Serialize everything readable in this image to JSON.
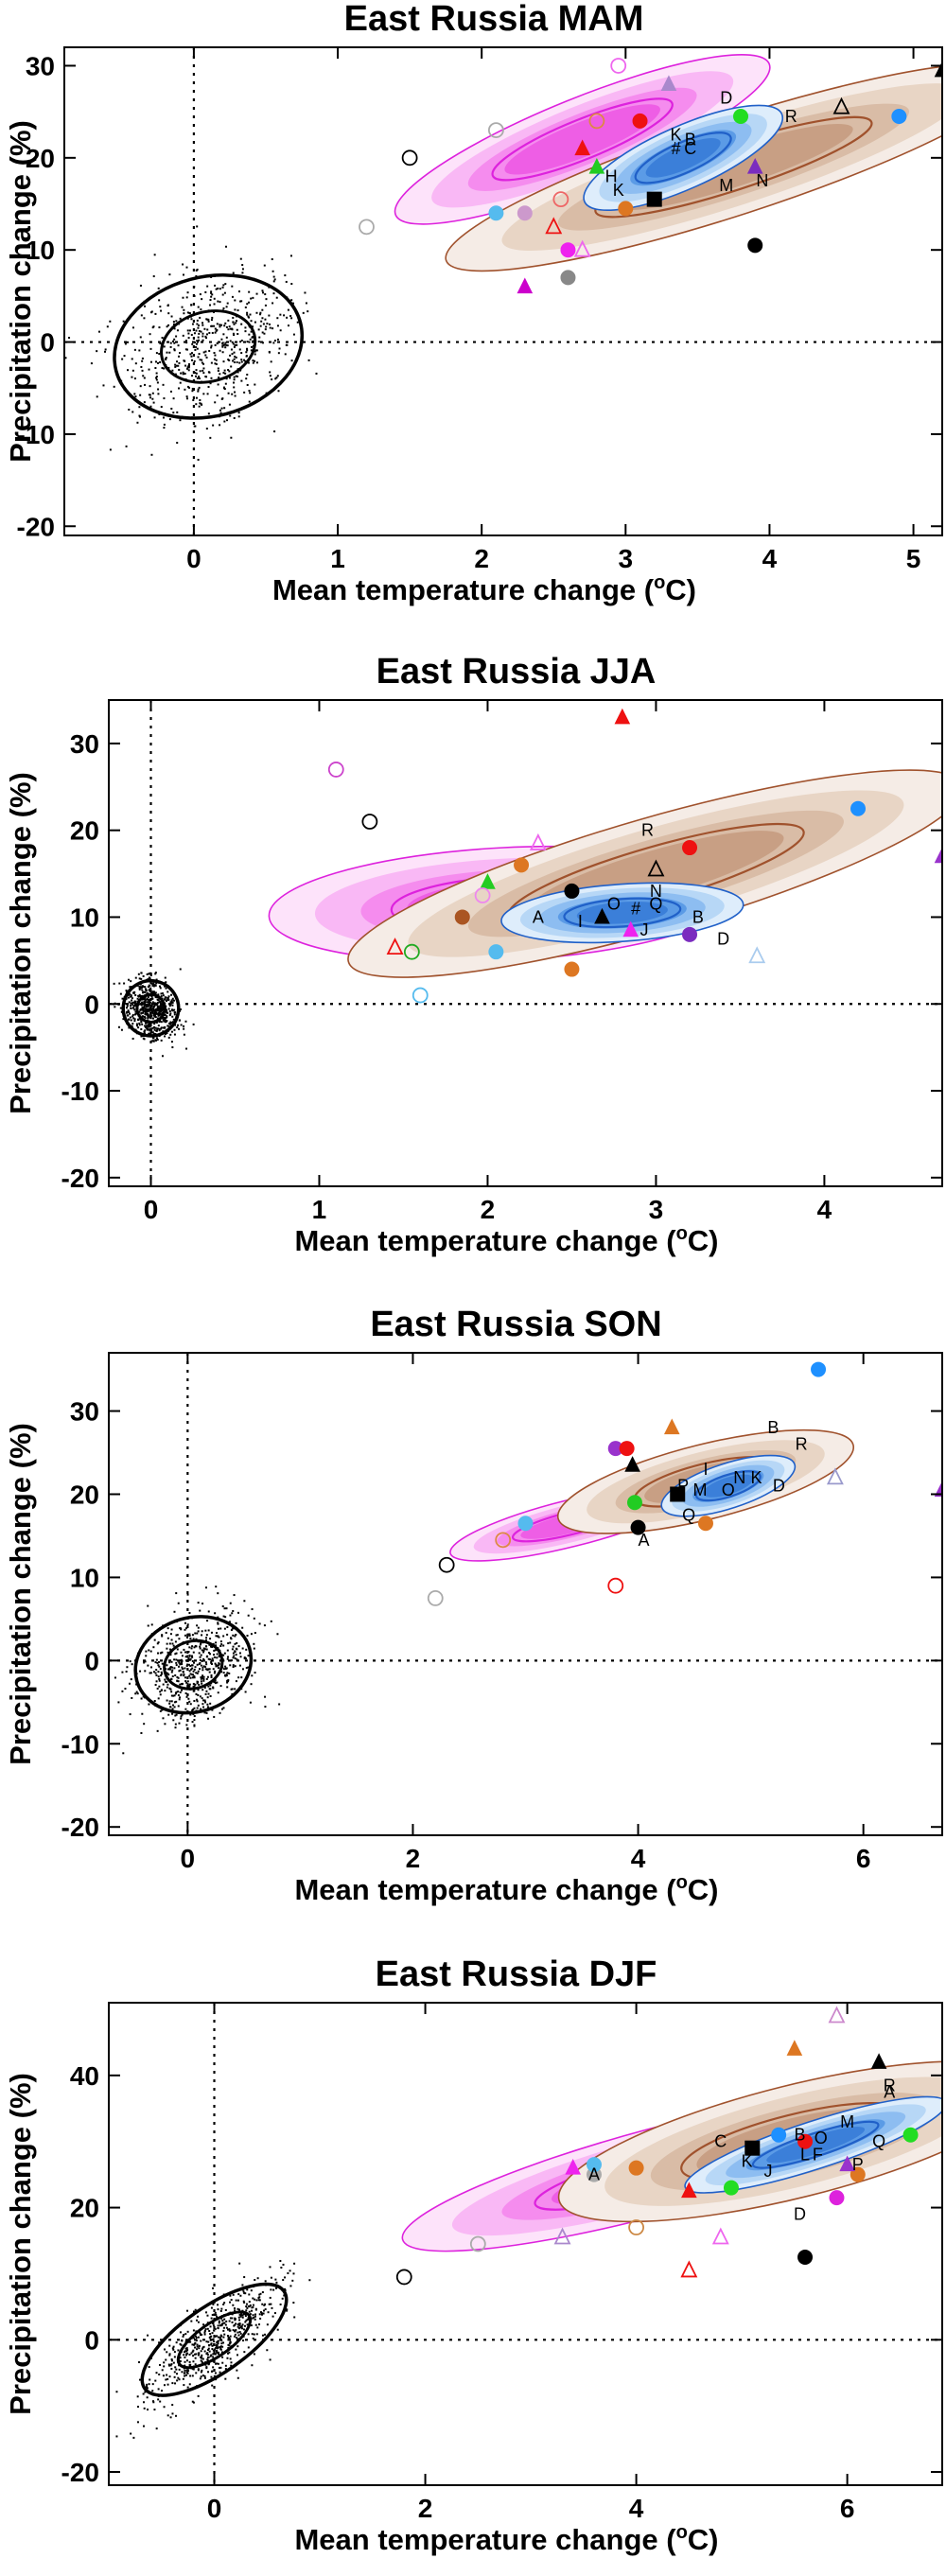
{
  "chart_data": [
    {
      "type": "scatter",
      "title": "East Russia MAM",
      "xlabel": "Mean temperature change (",
      "xlabel_sup": "o",
      "xlabel_unit": "C)",
      "ylabel": "Precipitation change (%)",
      "xlim": [
        -0.9,
        5.2
      ],
      "ylim": [
        -21,
        32
      ],
      "xticks": [
        0,
        1,
        2,
        3,
        4,
        5
      ],
      "yticks": [
        -20,
        -10,
        0,
        10,
        20,
        30
      ],
      "control": {
        "cx": 0.1,
        "cy": -0.5,
        "sx": 0.32,
        "sy": 4.4,
        "corr": 0.3
      },
      "magenta": {
        "cx": 2.7,
        "cy": 22,
        "rx": 1.4,
        "ry": 4.5,
        "angle": 22
      },
      "brown": {
        "cx": 3.75,
        "cy": 19,
        "rx": 2.1,
        "ry": 5.2,
        "angle": 18
      },
      "blue": {
        "cx": 3.4,
        "cy": 20,
        "rx": 0.75,
        "ry": 3.4,
        "angle": 24
      },
      "letters": [
        {
          "t": "D",
          "x": 3.7,
          "y": 26.5
        },
        {
          "t": "K",
          "x": 3.35,
          "y": 22.5
        },
        {
          "t": "B",
          "x": 3.45,
          "y": 22
        },
        {
          "t": "R",
          "x": 4.15,
          "y": 24.5
        },
        {
          "t": "#",
          "x": 3.35,
          "y": 21
        },
        {
          "t": "C",
          "x": 3.45,
          "y": 21
        },
        {
          "t": "H",
          "x": 2.9,
          "y": 18
        },
        {
          "t": "K",
          "x": 2.95,
          "y": 16.5
        },
        {
          "t": "M",
          "x": 3.7,
          "y": 17
        },
        {
          "t": "N",
          "x": 3.95,
          "y": 17.5
        },
        {
          "t": "O",
          "x": 3.2,
          "y": 15.5
        }
      ],
      "markers": [
        {
          "s": "open-circle",
          "c": "#000000",
          "x": 1.5,
          "y": 20
        },
        {
          "s": "open-circle",
          "c": "#aaaaaa",
          "x": 1.2,
          "y": 12.5
        },
        {
          "s": "open-circle",
          "c": "#ee66ee",
          "x": 2.95,
          "y": 30
        },
        {
          "s": "fill-triangle",
          "c": "#cc00cc",
          "x": 2.3,
          "y": 6
        },
        {
          "s": "fill-circle",
          "c": "#888888",
          "x": 2.6,
          "y": 7
        },
        {
          "s": "fill-circle",
          "c": "#000000",
          "x": 3.9,
          "y": 10.5
        },
        {
          "s": "fill-triangle",
          "c": "#000000",
          "x": 5.2,
          "y": 29.5
        },
        {
          "s": "fill-circle",
          "c": "#1e90ff",
          "x": 4.9,
          "y": 24.5
        },
        {
          "s": "open-triangle",
          "c": "#000000",
          "x": 4.5,
          "y": 25.5
        },
        {
          "s": "fill-triangle",
          "c": "#7b2cbf",
          "x": 3.9,
          "y": 19
        },
        {
          "s": "fill-circle",
          "c": "#ee1111",
          "x": 3.1,
          "y": 24
        },
        {
          "s": "fill-circle",
          "c": "#22dd22",
          "x": 3.8,
          "y": 24.5
        },
        {
          "s": "fill-triangle",
          "c": "#ee1111",
          "x": 2.7,
          "y": 21
        },
        {
          "s": "fill-triangle",
          "c": "#22cc22",
          "x": 2.8,
          "y": 19
        },
        {
          "s": "fill-circle",
          "c": "#dd7722",
          "x": 3.0,
          "y": 14.5
        },
        {
          "s": "fill-square",
          "c": "#000000",
          "x": 3.2,
          "y": 15.5
        },
        {
          "s": "fill-circle",
          "c": "#ee22ee",
          "x": 2.6,
          "y": 10
        },
        {
          "s": "open-triangle",
          "c": "#ee1111",
          "x": 2.5,
          "y": 12.5
        },
        {
          "s": "fill-circle",
          "c": "#55bbee",
          "x": 2.1,
          "y": 14
        },
        {
          "s": "open-circle",
          "c": "#aaaaaa",
          "x": 2.1,
          "y": 23
        },
        {
          "s": "fill-circle",
          "c": "#cc99cc",
          "x": 2.3,
          "y": 14
        },
        {
          "s": "open-triangle",
          "c": "#ee66ee",
          "x": 2.7,
          "y": 10
        },
        {
          "s": "open-circle",
          "c": "#ee6666",
          "x": 2.55,
          "y": 15.5
        },
        {
          "s": "fill-triangle",
          "c": "#aa88cc",
          "x": 3.3,
          "y": 28
        },
        {
          "s": "open-circle",
          "c": "#dd8844",
          "x": 2.8,
          "y": 24
        }
      ]
    },
    {
      "type": "scatter",
      "title": "East Russia JJA",
      "xlabel": "Mean temperature change (",
      "xlabel_sup": "o",
      "xlabel_unit": "C)",
      "ylabel": "Precipitation change (%)",
      "xlim": [
        -0.25,
        4.7
      ],
      "ylim": [
        -21,
        35
      ],
      "xticks": [
        0,
        1,
        2,
        3,
        4
      ],
      "yticks": [
        -20,
        -10,
        0,
        10,
        20,
        30
      ],
      "control": {
        "cx": 0.0,
        "cy": -0.5,
        "sx": 0.08,
        "sy": 1.8,
        "corr": -0.2
      },
      "magenta": {
        "cx": 2.1,
        "cy": 11.5,
        "rx": 1.4,
        "ry": 6.5,
        "angle": 3
      },
      "brown": {
        "cx": 3.0,
        "cy": 15,
        "rx": 1.9,
        "ry": 6.5,
        "angle": 16
      },
      "blue": {
        "cx": 2.8,
        "cy": 10.5,
        "rx": 0.72,
        "ry": 3.3,
        "angle": 4
      },
      "letters": [
        {
          "t": "R",
          "x": 2.95,
          "y": 20
        },
        {
          "t": "A",
          "x": 2.3,
          "y": 10
        },
        {
          "t": "I",
          "x": 2.55,
          "y": 9.5
        },
        {
          "t": "O",
          "x": 2.75,
          "y": 11.5
        },
        {
          "t": "#",
          "x": 2.88,
          "y": 11
        },
        {
          "t": "Q",
          "x": 3.0,
          "y": 11.5
        },
        {
          "t": "N",
          "x": 3.0,
          "y": 13
        },
        {
          "t": "J",
          "x": 2.93,
          "y": 8.5
        },
        {
          "t": "D",
          "x": 3.4,
          "y": 7.5
        },
        {
          "t": "B",
          "x": 3.25,
          "y": 10
        }
      ],
      "markers": [
        {
          "s": "fill-triangle",
          "c": "#ee1111",
          "x": 2.8,
          "y": 33
        },
        {
          "s": "open-circle",
          "c": "#cc44cc",
          "x": 1.1,
          "y": 27
        },
        {
          "s": "open-circle",
          "c": "#000000",
          "x": 1.3,
          "y": 21
        },
        {
          "s": "fill-circle",
          "c": "#1e90ff",
          "x": 4.2,
          "y": 22.5
        },
        {
          "s": "fill-triangle",
          "c": "#9933cc",
          "x": 4.7,
          "y": 17
        },
        {
          "s": "fill-circle",
          "c": "#ee1111",
          "x": 3.2,
          "y": 18
        },
        {
          "s": "fill-circle",
          "c": "#000000",
          "x": 2.5,
          "y": 13
        },
        {
          "s": "fill-triangle",
          "c": "#000000",
          "x": 2.68,
          "y": 10
        },
        {
          "s": "fill-circle",
          "c": "#7b2cbf",
          "x": 3.2,
          "y": 8
        },
        {
          "s": "fill-triangle",
          "c": "#22cc22",
          "x": 2.0,
          "y": 14
        },
        {
          "s": "fill-circle",
          "c": "#dd7722",
          "x": 2.2,
          "y": 16
        },
        {
          "s": "fill-circle",
          "c": "#aa5522",
          "x": 1.85,
          "y": 10
        },
        {
          "s": "open-triangle",
          "c": "#ee1111",
          "x": 1.45,
          "y": 6.5
        },
        {
          "s": "open-circle",
          "c": "#22aa22",
          "x": 1.55,
          "y": 6
        },
        {
          "s": "fill-circle",
          "c": "#55bbee",
          "x": 2.05,
          "y": 6
        },
        {
          "s": "open-circle",
          "c": "#55bbee",
          "x": 1.6,
          "y": 1
        },
        {
          "s": "fill-circle",
          "c": "#dd7722",
          "x": 2.5,
          "y": 4
        },
        {
          "s": "open-triangle",
          "c": "#aaccee",
          "x": 3.6,
          "y": 5.5
        },
        {
          "s": "open-triangle",
          "c": "#ee66ee",
          "x": 2.3,
          "y": 18.5
        },
        {
          "s": "fill-triangle",
          "c": "#ee22ee",
          "x": 2.85,
          "y": 8.5
        },
        {
          "s": "open-circle",
          "c": "#ee88ee",
          "x": 1.97,
          "y": 12.5
        },
        {
          "s": "open-triangle",
          "c": "#000000",
          "x": 3.0,
          "y": 15.5
        }
      ]
    },
    {
      "type": "scatter",
      "title": "East Russia SON",
      "xlabel": "Mean temperature change (",
      "xlabel_sup": "o",
      "xlabel_unit": "C)",
      "ylabel": "Precipitation change (%)",
      "xlim": [
        -0.7,
        6.7
      ],
      "ylim": [
        -21,
        37
      ],
      "xticks": [
        0,
        2,
        4,
        6
      ],
      "yticks": [
        -20,
        -10,
        0,
        10,
        20,
        30
      ],
      "control": {
        "cx": 0.05,
        "cy": -0.5,
        "sx": 0.25,
        "sy": 3.3,
        "corr": 0.3
      },
      "magenta": {
        "cx": 3.4,
        "cy": 16.5,
        "rx": 1.1,
        "ry": 2.8,
        "angle": 14
      },
      "brown": {
        "cx": 4.6,
        "cy": 21.5,
        "rx": 1.35,
        "ry": 4.5,
        "angle": 14
      },
      "blue": {
        "cx": 4.8,
        "cy": 21,
        "rx": 0.62,
        "ry": 2.7,
        "angle": 18
      },
      "letters": [
        {
          "t": "B",
          "x": 5.2,
          "y": 28
        },
        {
          "t": "R",
          "x": 5.45,
          "y": 26
        },
        {
          "t": "I",
          "x": 4.6,
          "y": 23
        },
        {
          "t": "P",
          "x": 4.4,
          "y": 21
        },
        {
          "t": "M",
          "x": 4.55,
          "y": 20.5
        },
        {
          "t": "N",
          "x": 4.9,
          "y": 22
        },
        {
          "t": "K",
          "x": 5.05,
          "y": 22
        },
        {
          "t": "D",
          "x": 5.25,
          "y": 21
        },
        {
          "t": "O",
          "x": 4.8,
          "y": 20.5
        },
        {
          "t": "Q",
          "x": 4.45,
          "y": 17.5
        },
        {
          "t": "A",
          "x": 4.05,
          "y": 14.5
        }
      ],
      "markers": [
        {
          "s": "fill-circle",
          "c": "#1e90ff",
          "x": 5.6,
          "y": 35
        },
        {
          "s": "fill-triangle",
          "c": "#9933cc",
          "x": 6.7,
          "y": 20.5
        },
        {
          "s": "fill-triangle",
          "c": "#dd7722",
          "x": 4.3,
          "y": 28
        },
        {
          "s": "fill-circle",
          "c": "#9933cc",
          "x": 3.8,
          "y": 25.5
        },
        {
          "s": "fill-circle",
          "c": "#ee1111",
          "x": 3.9,
          "y": 25.5
        },
        {
          "s": "fill-triangle",
          "c": "#000000",
          "x": 3.95,
          "y": 23.5
        },
        {
          "s": "fill-square",
          "c": "#000000",
          "x": 4.35,
          "y": 20
        },
        {
          "s": "fill-circle",
          "c": "#000000",
          "x": 4.0,
          "y": 16
        },
        {
          "s": "fill-circle",
          "c": "#22cc22",
          "x": 3.97,
          "y": 19
        },
        {
          "s": "fill-circle",
          "c": "#dd7722",
          "x": 4.6,
          "y": 16.5
        },
        {
          "s": "open-circle",
          "c": "#000000",
          "x": 2.3,
          "y": 11.5
        },
        {
          "s": "open-circle",
          "c": "#aaaaaa",
          "x": 2.2,
          "y": 7.5
        },
        {
          "s": "open-circle",
          "c": "#ee1111",
          "x": 3.8,
          "y": 9
        },
        {
          "s": "fill-circle",
          "c": "#55bbee",
          "x": 3.0,
          "y": 16.5
        },
        {
          "s": "open-circle",
          "c": "#dd8844",
          "x": 2.8,
          "y": 14.5
        },
        {
          "s": "open-triangle",
          "c": "#9999cc",
          "x": 5.75,
          "y": 22
        }
      ]
    },
    {
      "type": "scatter",
      "title": "East Russia DJF",
      "xlabel": "Mean temperature change (",
      "xlabel_sup": "o",
      "xlabel_unit": "C)",
      "ylabel": "Precipitation change (%)",
      "xlim": [
        -1.0,
        6.9
      ],
      "ylim": [
        -22,
        51
      ],
      "xticks": [
        0,
        2,
        4,
        6
      ],
      "yticks": [
        -20,
        0,
        20,
        40
      ],
      "control": {
        "cx": 0.0,
        "cy": 0.0,
        "sx": 0.33,
        "sy": 4.6,
        "corr": 0.8
      },
      "magenta": {
        "cx": 4.2,
        "cy": 25.5,
        "rx": 2.5,
        "ry": 6.5,
        "angle": 15
      },
      "brown": {
        "cx": 5.5,
        "cy": 30,
        "rx": 2.3,
        "ry": 8.5,
        "angle": 14
      },
      "blue": {
        "cx": 5.7,
        "cy": 29.5,
        "rx": 1.3,
        "ry": 3.6,
        "angle": 18
      },
      "letters": [
        {
          "t": "R",
          "x": 6.4,
          "y": 38.5
        },
        {
          "t": "A",
          "x": 6.4,
          "y": 37.5
        },
        {
          "t": "M",
          "x": 6.0,
          "y": 33
        },
        {
          "t": "B",
          "x": 5.55,
          "y": 31
        },
        {
          "t": "O",
          "x": 5.75,
          "y": 30.5
        },
        {
          "t": "Q",
          "x": 6.3,
          "y": 30
        },
        {
          "t": "C",
          "x": 4.8,
          "y": 30
        },
        {
          "t": "K",
          "x": 5.05,
          "y": 27
        },
        {
          "t": "J",
          "x": 5.25,
          "y": 25.5
        },
        {
          "t": "L",
          "x": 5.6,
          "y": 28
        },
        {
          "t": "F",
          "x": 5.72,
          "y": 28
        },
        {
          "t": "D",
          "x": 5.55,
          "y": 19
        },
        {
          "t": "P",
          "x": 6.1,
          "y": 26.5
        },
        {
          "t": "A",
          "x": 3.6,
          "y": 25
        }
      ],
      "markers": [
        {
          "s": "fill-triangle",
          "c": "#dd7722",
          "x": 5.5,
          "y": 44
        },
        {
          "s": "fill-triangle",
          "c": "#000000",
          "x": 6.3,
          "y": 42
        },
        {
          "s": "open-triangle",
          "c": "#cc88cc",
          "x": 5.9,
          "y": 49
        },
        {
          "s": "fill-circle",
          "c": "#000000",
          "x": 5.6,
          "y": 12.5
        },
        {
          "s": "open-triangle",
          "c": "#ee1111",
          "x": 4.5,
          "y": 10.5
        },
        {
          "s": "open-circle",
          "c": "#000000",
          "x": 1.8,
          "y": 9.5
        },
        {
          "s": "open-circle",
          "c": "#aaaaaa",
          "x": 2.5,
          "y": 14.5
        },
        {
          "s": "fill-square",
          "c": "#000000",
          "x": 5.1,
          "y": 29
        },
        {
          "s": "fill-circle",
          "c": "#ee1111",
          "x": 5.6,
          "y": 30
        },
        {
          "s": "fill-circle",
          "c": "#22dd22",
          "x": 6.6,
          "y": 31
        },
        {
          "s": "fill-circle",
          "c": "#dd7722",
          "x": 6.1,
          "y": 25
        },
        {
          "s": "fill-circle",
          "c": "#dd22dd",
          "x": 5.9,
          "y": 21.5
        },
        {
          "s": "fill-triangle",
          "c": "#ee1111",
          "x": 4.5,
          "y": 22.5
        },
        {
          "s": "fill-circle",
          "c": "#22dd22",
          "x": 4.9,
          "y": 23
        },
        {
          "s": "fill-circle",
          "c": "#dd7722",
          "x": 4.0,
          "y": 26
        },
        {
          "s": "fill-circle",
          "c": "#aaaaaa",
          "x": 3.6,
          "y": 25
        },
        {
          "s": "fill-circle",
          "c": "#55bbee",
          "x": 3.6,
          "y": 26.5
        },
        {
          "s": "fill-triangle",
          "c": "#ee22ee",
          "x": 3.4,
          "y": 26
        },
        {
          "s": "fill-triangle",
          "c": "#9933cc",
          "x": 6.0,
          "y": 26.5
        },
        {
          "s": "fill-circle",
          "c": "#1e90ff",
          "x": 5.35,
          "y": 31
        },
        {
          "s": "open-triangle",
          "c": "#aa88cc",
          "x": 3.3,
          "y": 15.5
        },
        {
          "s": "open-triangle",
          "c": "#ee66ee",
          "x": 4.8,
          "y": 15.5
        },
        {
          "s": "open-circle",
          "c": "#cc8844",
          "x": 4.0,
          "y": 17
        }
      ]
    }
  ]
}
